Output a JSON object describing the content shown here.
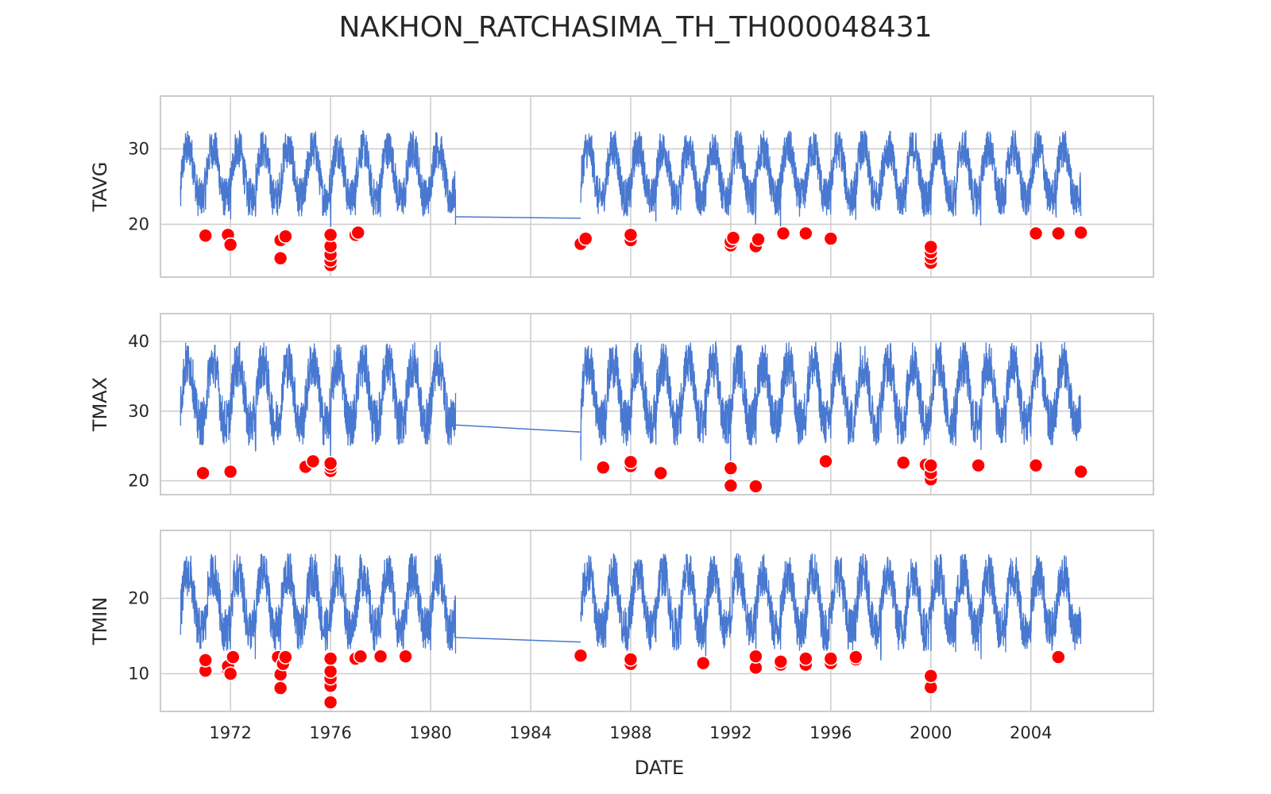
{
  "chart_data": {
    "type": "line",
    "title": "NAKHON_RATCHASIMA_TH_TH000048431",
    "xlabel": "DATE",
    "x_range": [
      1969.2,
      2008.9
    ],
    "x_ticks": [
      "1972",
      "1976",
      "1980",
      "1984",
      "1988",
      "1992",
      "1996",
      "2000",
      "2004"
    ],
    "grid": true,
    "line_color": "#4878d0",
    "marker_color": "#ff0000",
    "panels": [
      {
        "ylabel": "TAVG",
        "ylim": [
          13.0,
          37.0
        ],
        "y_ticks": [
          20,
          30
        ],
        "season": {
          "min": 21.0,
          "max": 32.5
        },
        "gap": {
          "start": 1981.0,
          "end": 1986.0,
          "y_start": 21.0,
          "y_end": 20.8
        },
        "series": [
          {
            "segment": [
              1970.0,
              1981.0
            ]
          },
          {
            "segment": [
              1986.0,
              2006.0
            ]
          }
        ],
        "outliers": [
          [
            1971.0,
            18.5
          ],
          [
            1971.9,
            18.6
          ],
          [
            1972.0,
            17.3
          ],
          [
            1974.0,
            17.9
          ],
          [
            1974.0,
            15.5
          ],
          [
            1974.2,
            18.4
          ],
          [
            1976.0,
            14.6
          ],
          [
            1976.0,
            15.2
          ],
          [
            1976.0,
            16.0
          ],
          [
            1976.0,
            17.1
          ],
          [
            1976.0,
            18.6
          ],
          [
            1977.0,
            18.6
          ],
          [
            1977.1,
            18.9
          ],
          [
            1986.0,
            17.4
          ],
          [
            1986.2,
            18.1
          ],
          [
            1988.0,
            17.9
          ],
          [
            1988.0,
            18.6
          ],
          [
            1992.0,
            17.2
          ],
          [
            1992.0,
            17.7
          ],
          [
            1992.1,
            18.2
          ],
          [
            1993.0,
            17.1
          ],
          [
            1993.1,
            18.0
          ],
          [
            1994.1,
            18.8
          ],
          [
            1995.0,
            18.8
          ],
          [
            1996.0,
            18.1
          ],
          [
            2000.0,
            14.9
          ],
          [
            2000.0,
            15.6
          ],
          [
            2000.0,
            16.3
          ],
          [
            2000.0,
            17.0
          ],
          [
            2004.2,
            18.8
          ],
          [
            2005.1,
            18.8
          ],
          [
            2006.0,
            18.9
          ]
        ]
      },
      {
        "ylabel": "TMAX",
        "ylim": [
          18.0,
          44.0
        ],
        "y_ticks": [
          20,
          30,
          40
        ],
        "season": {
          "min": 25.0,
          "max": 40.0
        },
        "gap": {
          "start": 1981.0,
          "end": 1986.0,
          "y_start": 28.0,
          "y_end": 27.0
        },
        "series": [
          {
            "segment": [
              1970.0,
              1981.0
            ]
          },
          {
            "segment": [
              1986.0,
              2006.0
            ]
          }
        ],
        "outliers": [
          [
            1970.9,
            21.1
          ],
          [
            1972.0,
            21.3
          ],
          [
            1975.0,
            22.0
          ],
          [
            1975.3,
            22.8
          ],
          [
            1976.0,
            21.4
          ],
          [
            1976.0,
            22.0
          ],
          [
            1976.0,
            22.5
          ],
          [
            1986.9,
            21.9
          ],
          [
            1988.0,
            22.1
          ],
          [
            1988.0,
            22.7
          ],
          [
            1989.2,
            21.1
          ],
          [
            1992.0,
            19.3
          ],
          [
            1992.0,
            21.8
          ],
          [
            1993.0,
            19.2
          ],
          [
            1995.8,
            22.8
          ],
          [
            1998.9,
            22.6
          ],
          [
            1999.8,
            22.3
          ],
          [
            2000.0,
            20.2
          ],
          [
            2000.0,
            21.1
          ],
          [
            2000.0,
            22.2
          ],
          [
            2001.9,
            22.2
          ],
          [
            2004.2,
            22.2
          ],
          [
            2006.0,
            21.3
          ]
        ]
      },
      {
        "ylabel": "TMIN",
        "ylim": [
          5.0,
          29.0
        ],
        "y_ticks": [
          10,
          20
        ],
        "season": {
          "min": 13.0,
          "max": 26.0
        },
        "gap": {
          "start": 1981.0,
          "end": 1986.0,
          "y_start": 14.8,
          "y_end": 14.2
        },
        "series": [
          {
            "segment": [
              1970.0,
              1981.0
            ]
          },
          {
            "segment": [
              1986.0,
              2006.0
            ]
          }
        ],
        "outliers": [
          [
            1971.0,
            10.4
          ],
          [
            1971.0,
            11.8
          ],
          [
            1971.9,
            10.5
          ],
          [
            1971.9,
            11.0
          ],
          [
            1972.0,
            10.0
          ],
          [
            1972.1,
            12.2
          ],
          [
            1973.9,
            12.2
          ],
          [
            1974.0,
            8.1
          ],
          [
            1974.0,
            9.9
          ],
          [
            1974.1,
            11.3
          ],
          [
            1974.2,
            12.2
          ],
          [
            1976.0,
            6.2
          ],
          [
            1976.0,
            8.4
          ],
          [
            1976.0,
            9.4
          ],
          [
            1976.0,
            10.3
          ],
          [
            1976.0,
            12.0
          ],
          [
            1977.0,
            12.0
          ],
          [
            1977.2,
            12.3
          ],
          [
            1978.0,
            12.3
          ],
          [
            1979.0,
            12.3
          ],
          [
            1986.0,
            12.4
          ],
          [
            1988.0,
            11.3
          ],
          [
            1988.0,
            11.9
          ],
          [
            1990.9,
            11.4
          ],
          [
            1993.0,
            10.8
          ],
          [
            1993.0,
            12.3
          ],
          [
            1994.0,
            11.2
          ],
          [
            1994.0,
            11.6
          ],
          [
            1995.0,
            11.2
          ],
          [
            1995.0,
            12.0
          ],
          [
            1996.0,
            11.4
          ],
          [
            1996.0,
            12.0
          ],
          [
            1997.0,
            11.9
          ],
          [
            1997.0,
            12.2
          ],
          [
            2000.0,
            8.2
          ],
          [
            2000.0,
            9.7
          ],
          [
            2005.1,
            12.2
          ]
        ]
      }
    ]
  }
}
